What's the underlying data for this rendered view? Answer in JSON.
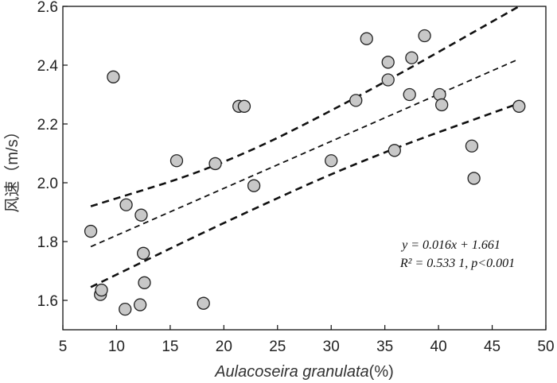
{
  "chart_data": {
    "type": "scatter",
    "title": "",
    "xlabel": "Aulacoseira granulata",
    "xlabel_unit": "(%)",
    "ylabel": "风速（m/s）",
    "xlim": [
      5,
      50
    ],
    "ylim": [
      1.5,
      2.6
    ],
    "xticks": [
      5,
      10,
      15,
      20,
      25,
      30,
      35,
      40,
      45,
      50
    ],
    "yticks": [
      1.6,
      1.8,
      2.0,
      2.2,
      2.4,
      2.6
    ],
    "grid": false,
    "points": [
      {
        "x": 7.6,
        "y": 1.835
      },
      {
        "x": 8.5,
        "y": 1.62
      },
      {
        "x": 8.6,
        "y": 1.635
      },
      {
        "x": 9.7,
        "y": 2.36
      },
      {
        "x": 10.8,
        "y": 1.57
      },
      {
        "x": 10.9,
        "y": 1.925
      },
      {
        "x": 12.2,
        "y": 1.585
      },
      {
        "x": 12.3,
        "y": 1.89
      },
      {
        "x": 12.5,
        "y": 1.76
      },
      {
        "x": 12.6,
        "y": 1.66
      },
      {
        "x": 15.6,
        "y": 2.075
      },
      {
        "x": 18.1,
        "y": 1.59
      },
      {
        "x": 19.2,
        "y": 2.065
      },
      {
        "x": 21.4,
        "y": 2.26
      },
      {
        "x": 21.9,
        "y": 2.26
      },
      {
        "x": 22.8,
        "y": 1.99
      },
      {
        "x": 30.0,
        "y": 2.075
      },
      {
        "x": 32.3,
        "y": 2.28
      },
      {
        "x": 33.3,
        "y": 2.49
      },
      {
        "x": 35.3,
        "y": 2.41
      },
      {
        "x": 35.3,
        "y": 2.35
      },
      {
        "x": 35.9,
        "y": 2.11
      },
      {
        "x": 37.3,
        "y": 2.3
      },
      {
        "x": 37.5,
        "y": 2.425
      },
      {
        "x": 38.7,
        "y": 2.5
      },
      {
        "x": 40.1,
        "y": 2.3
      },
      {
        "x": 40.3,
        "y": 2.265
      },
      {
        "x": 43.1,
        "y": 2.125
      },
      {
        "x": 43.3,
        "y": 2.015
      },
      {
        "x": 47.5,
        "y": 2.26
      }
    ],
    "fit_line": {
      "slope": 0.016,
      "intercept": 1.661,
      "x_range": [
        7.6,
        47.4
      ]
    },
    "upper_bound": [
      [
        7.6,
        1.92
      ],
      [
        20,
        2.06
      ],
      [
        33,
        2.3
      ],
      [
        47.5,
        2.6
      ]
    ],
    "lower_bound": [
      [
        7.6,
        1.645
      ],
      [
        20,
        1.865
      ],
      [
        33,
        2.08
      ],
      [
        47.5,
        2.27
      ]
    ],
    "annotation": {
      "line1": "y = 0.016x + 1.661",
      "line2": "R² = 0.533 1,  p<0.001"
    },
    "marker_fill": "#c8c8c8",
    "marker_stroke": "#222222"
  }
}
